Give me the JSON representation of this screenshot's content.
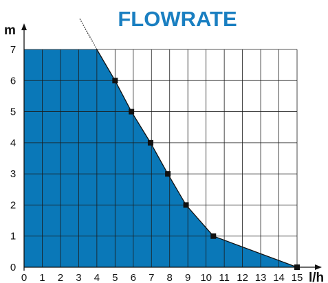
{
  "chart_data": {
    "type": "area",
    "title": "FLOWRATE",
    "xlabel": "l/h",
    "ylabel": "m",
    "xlim": [
      0,
      15
    ],
    "ylim": [
      0,
      7
    ],
    "x_ticks": [
      "0",
      "1",
      "2",
      "3",
      "4",
      "5",
      "6",
      "7",
      "8",
      "9",
      "10",
      "11",
      "12",
      "13",
      "14",
      "15"
    ],
    "y_ticks": [
      "0",
      "1",
      "2",
      "3",
      "4",
      "5",
      "6",
      "7"
    ],
    "grid": true,
    "fill_color": "#0a78b8",
    "series": [
      {
        "points": [
          {
            "x": 5.0,
            "y": 6
          },
          {
            "x": 5.9,
            "y": 5
          },
          {
            "x": 6.95,
            "y": 4
          },
          {
            "x": 7.9,
            "y": 3
          },
          {
            "x": 8.9,
            "y": 2
          },
          {
            "x": 10.4,
            "y": 1
          },
          {
            "x": 15.0,
            "y": 0
          }
        ],
        "max_head_m": 7,
        "extrapolated_line": [
          {
            "x": 4.0,
            "y": 7
          },
          {
            "x": 3.05,
            "y": 8
          }
        ]
      }
    ]
  }
}
